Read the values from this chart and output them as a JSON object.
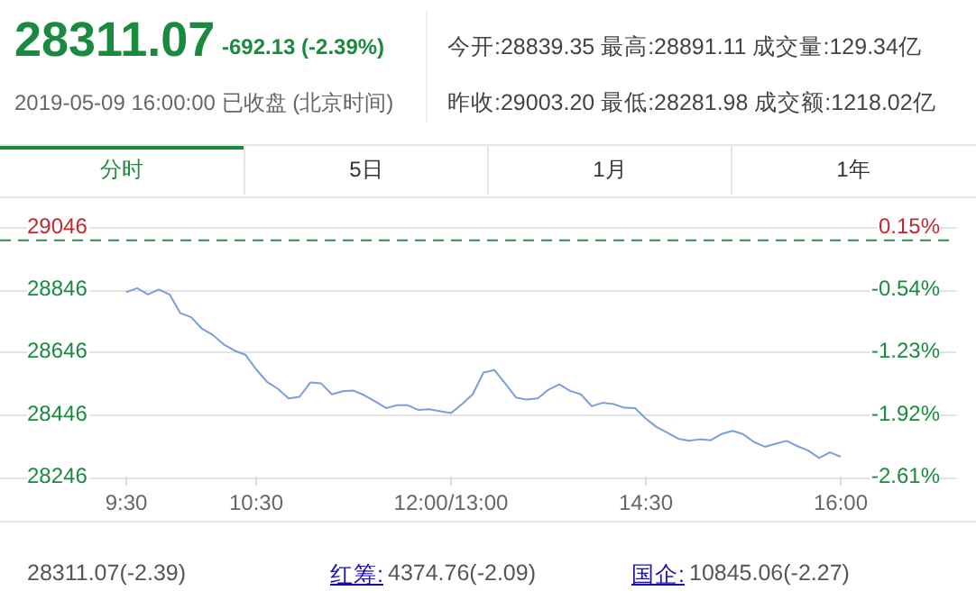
{
  "chart_data": {
    "type": "line",
    "title": "28311.07",
    "subtitle": "-692.13 (-2.39%)",
    "annotations": [
      "2019-05-09 16:00:00  已收盘 (北京时间)",
      "今开:28839.35 最高:28891.11 成交量:129.34亿",
      "昨收:29003.20 最低:28281.98 成交额:1218.02亿",
      "分时",
      "5日",
      "1月",
      "1年",
      "28311.07(-2.39)",
      "红筹:",
      "4374.76(-2.09)",
      "国企:",
      "10845.06(-2.27)"
    ],
    "categories": [
      "9:30",
      null,
      null,
      null,
      null,
      null,
      null,
      null,
      null,
      null,
      null,
      null,
      "10:30",
      null,
      null,
      null,
      null,
      null,
      null,
      null,
      null,
      null,
      null,
      null,
      null,
      null,
      null,
      null,
      null,
      null,
      "12:00/13:00",
      null,
      null,
      null,
      null,
      null,
      null,
      null,
      null,
      null,
      null,
      null,
      null,
      null,
      null,
      null,
      null,
      null,
      "14:30",
      null,
      null,
      null,
      null,
      null,
      null,
      null,
      null,
      null,
      null,
      null,
      null,
      null,
      null,
      null,
      null,
      null,
      "16:00"
    ],
    "series": [
      {
        "color": "#7b9de0",
        "values": [
          28837,
          28850,
          28830,
          28846,
          28830,
          28770,
          28757,
          28720,
          28700,
          28670,
          28650,
          28637,
          28590,
          28550,
          28528,
          28497,
          28502,
          28548,
          28545,
          28510,
          28520,
          28522,
          28507,
          28487,
          28466,
          28475,
          28475,
          28460,
          28462,
          28456,
          28450,
          28478,
          28510,
          28580,
          28588,
          28545,
          28500,
          28493,
          28497,
          28525,
          28542,
          28521,
          28510,
          28472,
          28483,
          28479,
          28467,
          28466,
          28432,
          28405,
          28387,
          28368,
          28361,
          28366,
          28363,
          28383,
          28393,
          28382,
          28357,
          28342,
          28352,
          28361,
          28344,
          28330,
          28306,
          28324,
          28310
        ]
      }
    ],
    "ylim": [
      28246,
      29046
    ],
    "yticks": [
      28246,
      28446,
      28646,
      28846,
      29046
    ],
    "y2lim": [
      -2.6107,
      0.1476
    ],
    "y2ticks": [
      {
        "value": -2.6107,
        "label": "-2.61%"
      },
      {
        "value": -1.9212,
        "label": "-1.92%"
      },
      {
        "value": -1.2316,
        "label": "-1.23%"
      },
      {
        "value": -0.542,
        "label": "-0.54%"
      },
      {
        "value": 0.1476,
        "label": "0.15%"
      }
    ],
    "ref_lines": [
      {
        "axis": "y",
        "value": 29003.2,
        "color": "#2e8b4a",
        "line_style": "dashed"
      }
    ],
    "grid": "y",
    "legend": false,
    "marker": "none",
    "line_style": "solid"
  }
}
